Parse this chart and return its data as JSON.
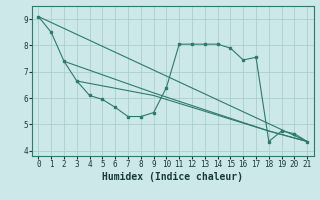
{
  "xlabel": "Humidex (Indice chaleur)",
  "bg_color": "#cce8e8",
  "line_color": "#2d7a6e",
  "grid_color": "#aacece",
  "xlim": [
    -0.5,
    21.5
  ],
  "ylim": [
    3.8,
    9.5
  ],
  "xticks": [
    0,
    1,
    2,
    3,
    4,
    5,
    6,
    7,
    8,
    9,
    10,
    11,
    12,
    13,
    14,
    15,
    16,
    17,
    18,
    19,
    20,
    21
  ],
  "yticks": [
    4,
    5,
    6,
    7,
    8,
    9
  ],
  "series1_x": [
    0,
    1,
    2,
    3,
    4,
    5,
    6,
    7,
    8,
    9,
    10,
    11,
    12,
    13,
    14,
    15,
    16,
    17,
    18,
    19,
    20,
    21
  ],
  "series1_y": [
    9.1,
    8.5,
    7.4,
    6.65,
    6.1,
    5.95,
    5.65,
    5.3,
    5.3,
    5.45,
    6.4,
    8.05,
    8.05,
    8.05,
    8.05,
    7.9,
    7.45,
    7.55,
    4.35,
    4.75,
    4.65,
    4.35
  ],
  "line2_x": [
    0,
    21
  ],
  "line2_y": [
    9.1,
    4.35
  ],
  "line3_x": [
    2,
    9,
    18,
    21
  ],
  "line3_y": [
    7.4,
    6.2,
    4.75,
    4.35
  ],
  "line4_x": [
    3,
    9,
    18,
    21
  ],
  "line4_y": [
    6.65,
    6.1,
    4.75,
    4.35
  ],
  "xlabel_fontsize": 7,
  "tick_fontsize": 5.5
}
